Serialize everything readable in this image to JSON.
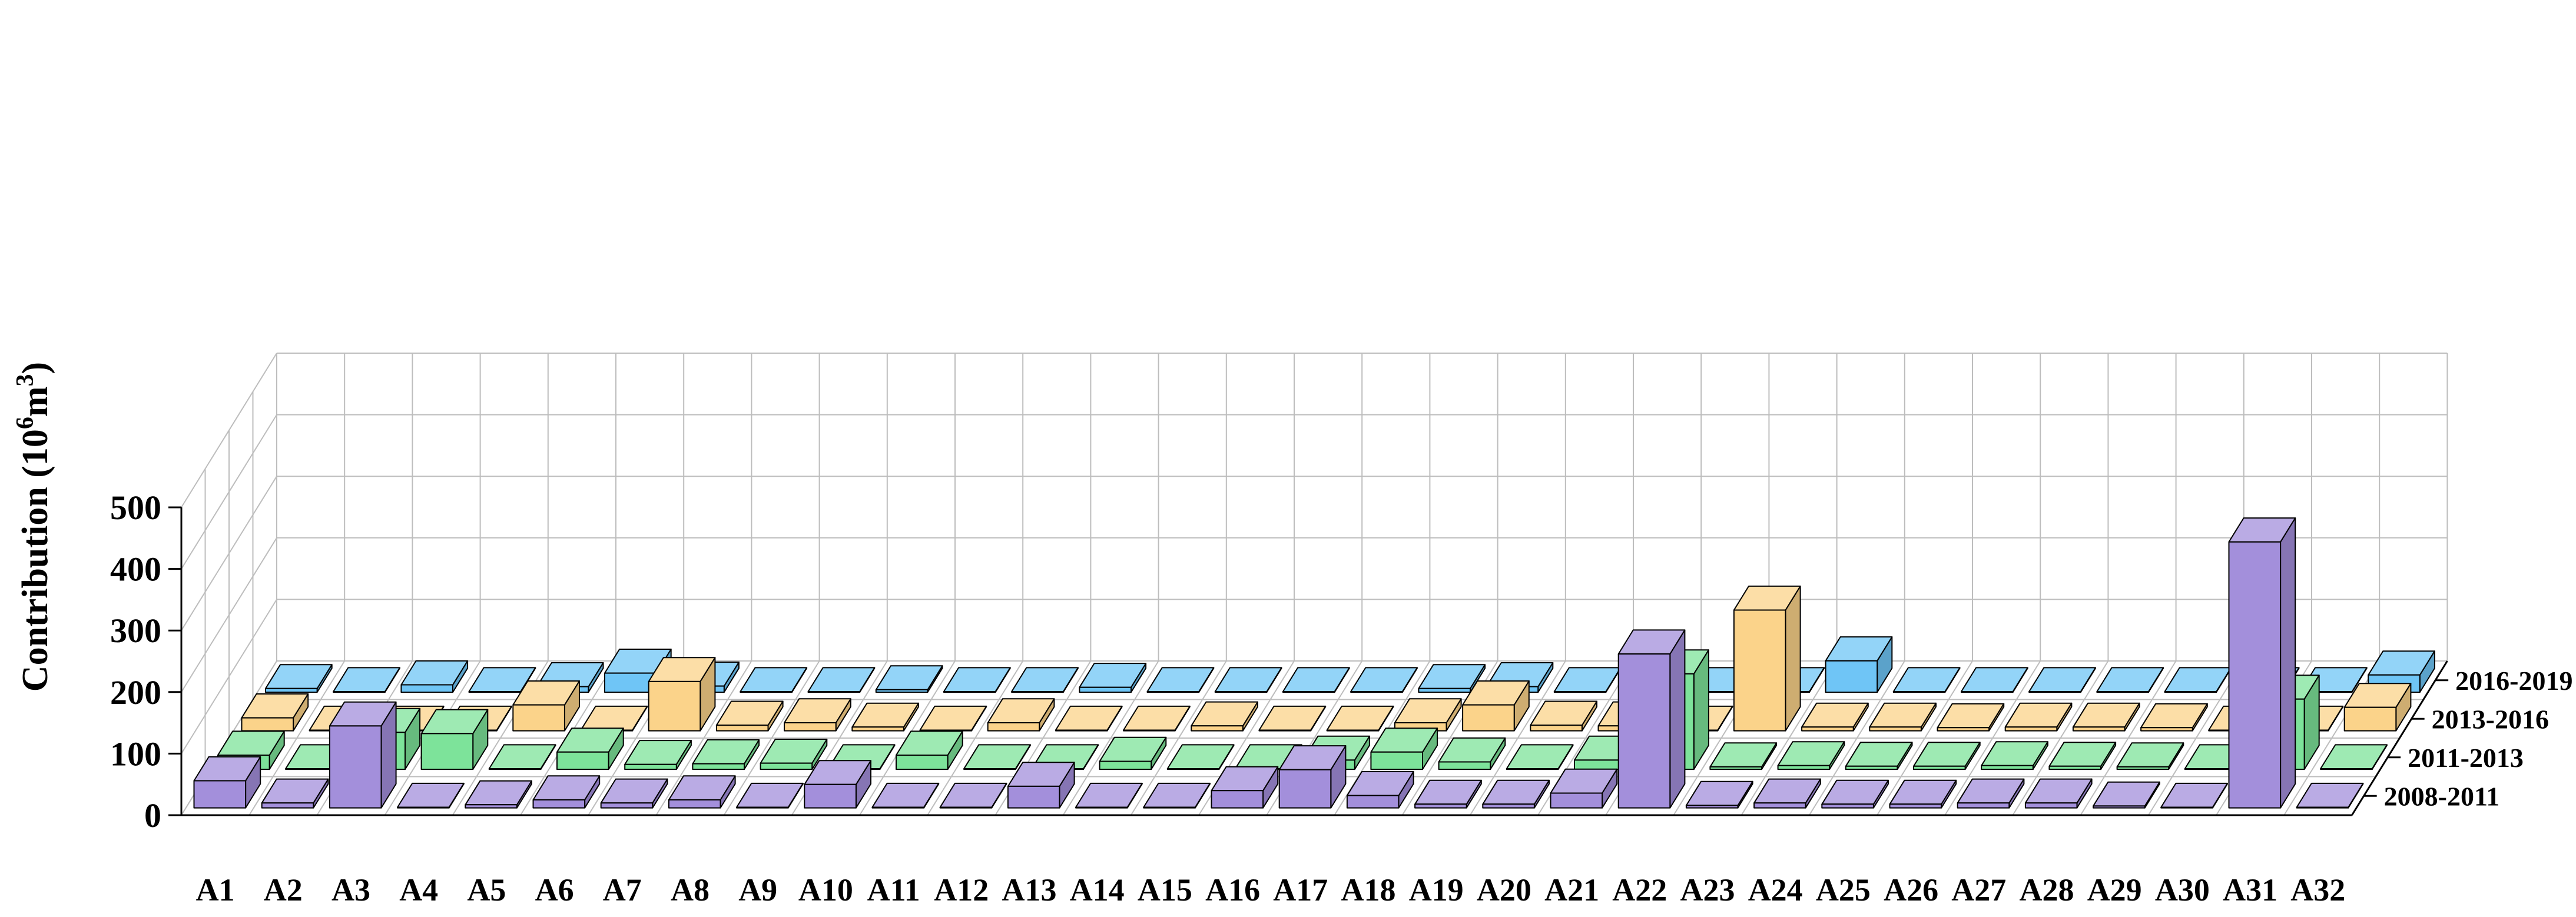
{
  "chart_data": {
    "type": "bar",
    "subtype": "3d-grouped-bar",
    "categories": [
      "A1",
      "A2",
      "A3",
      "A4",
      "A5",
      "A6",
      "A7",
      "A8",
      "A9",
      "A10",
      "A11",
      "A12",
      "A13",
      "A14",
      "A15",
      "A16",
      "A17",
      "A18",
      "A19",
      "A20",
      "A21",
      "A22",
      "A23",
      "A24",
      "A25",
      "A26",
      "A27",
      "A28",
      "A29",
      "A30",
      "A31",
      "A32"
    ],
    "series": [
      {
        "name": "2008-2011",
        "color": "#a38fdb",
        "values": [
          44,
          8,
          133,
          1,
          5,
          13,
          8,
          13,
          1,
          38,
          1,
          1,
          35,
          1,
          1,
          28,
          62,
          20,
          6,
          6,
          24,
          250,
          4,
          8,
          6,
          6,
          8,
          8,
          3,
          1,
          432,
          1
        ]
      },
      {
        "name": "2011-2013",
        "color": "#7de39a",
        "values": [
          23,
          1,
          60,
          58,
          1,
          28,
          8,
          9,
          10,
          1,
          23,
          1,
          1,
          13,
          1,
          1,
          15,
          28,
          12,
          1,
          15,
          155,
          4,
          6,
          5,
          5,
          6,
          5,
          4,
          1,
          114,
          1
        ]
      },
      {
        "name": "2013-2016",
        "color": "#fbd38a",
        "values": [
          21,
          1,
          1,
          1,
          42,
          1,
          80,
          9,
          13,
          6,
          1,
          13,
          1,
          1,
          8,
          1,
          1,
          13,
          42,
          9,
          8,
          1,
          196,
          6,
          6,
          5,
          6,
          6,
          5,
          1,
          1,
          38
        ]
      },
      {
        "name": "2016-2019",
        "color": "#6fc5f6",
        "values": [
          6,
          1,
          12,
          1,
          9,
          31,
          10,
          1,
          1,
          4,
          1,
          1,
          8,
          1,
          1,
          1,
          1,
          6,
          9,
          1,
          5,
          1,
          1,
          51,
          1,
          1,
          1,
          1,
          1,
          1,
          1,
          28
        ]
      }
    ],
    "ylabel": "Contribution (10⁶m³)",
    "ylabel_main": "Contribution (10",
    "ylabel_sup1": "6",
    "ylabel_mid": "m",
    "ylabel_sup2": "3",
    "ylabel_end": ")",
    "xlabel": "",
    "title": "",
    "ylim": [
      0,
      500
    ],
    "yticks": [
      0,
      100,
      200,
      300,
      400,
      500
    ],
    "grid": true,
    "legend": "series labels at right end of depth axis"
  }
}
